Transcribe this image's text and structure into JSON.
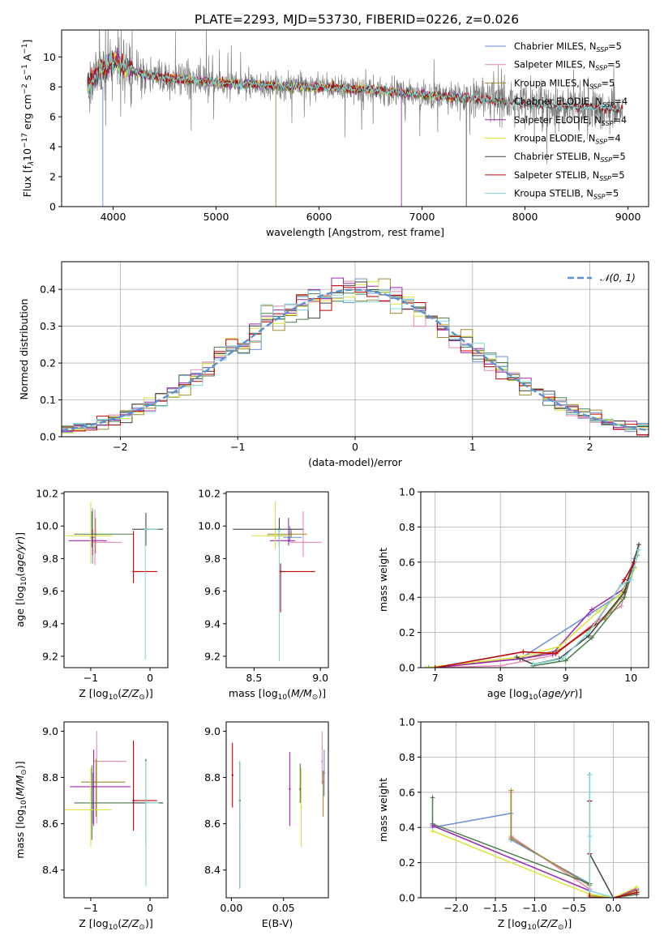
{
  "title": "PLATE=2293, MJD=53730, FIBERID=0226, z=0.026",
  "legend_labels": [
    "Chabrier MILES, N",
    "Salpeter MILES, N",
    "Kroupa MILES, N",
    "Chabrier ELODIE, N",
    "Salpeter ELODIE, N",
    "Kroupa ELODIE, N",
    "Chabrier STELIB, N",
    "Salpeter STELIB, N",
    "Kroupa STELIB, N"
  ],
  "legend_ssp": [
    "5",
    "5",
    "5",
    "4",
    "4",
    "4",
    "5",
    "5",
    "5"
  ],
  "legend_sub": "SSP",
  "colors": {
    "model": [
      "#6a8fd6",
      "#e889b0",
      "#a08a2a",
      "#4a7a4a",
      "#9c27b0",
      "#dde23a",
      "#444444",
      "#c00000",
      "#7fd8d8"
    ],
    "data_spectrum": "#808080",
    "gaussian": "#5b8fd6",
    "grid": "#b0b0b0"
  },
  "chart_data": [
    {
      "id": "spectrum",
      "type": "line",
      "xlabel": "wavelength [Angstrom, rest frame]",
      "ylabel": "Flux [f",
      "xlim": [
        3500,
        9200
      ],
      "ylim": [
        0,
        11.8
      ],
      "xticks": [
        4000,
        5000,
        6000,
        7000,
        8000,
        9000
      ],
      "yticks": [
        0,
        2,
        4,
        6,
        8,
        10
      ],
      "grid": false,
      "legend": "top-right",
      "continuum": {
        "x": [
          3750,
          3900,
          4000,
          4100,
          4300,
          4500,
          5000,
          5500,
          6000,
          6500,
          7000,
          7500,
          8000,
          8500,
          8900
        ],
        "y": [
          8.1,
          9.2,
          9.8,
          9.4,
          8.8,
          8.6,
          8.3,
          8.1,
          8.0,
          7.8,
          7.5,
          7.2,
          6.9,
          6.7,
          6.5
        ]
      },
      "data_range": [
        3750,
        8950
      ],
      "model_range": [
        3750,
        7450
      ],
      "stelib_range": [
        3750,
        8950
      ]
    },
    {
      "id": "residuals",
      "type": "histogram",
      "xlabel": "(data-model)/error",
      "ylabel": "Normed distribution",
      "xlim": [
        -2.5,
        2.5
      ],
      "ylim": [
        0,
        0.475
      ],
      "xticks": [
        -2,
        -1,
        0,
        1,
        2
      ],
      "yticks": [
        0.0,
        0.1,
        0.2,
        0.3,
        0.4
      ],
      "grid": true,
      "legend": "top-right",
      "gaussian_label": "𝒩(0, 1)",
      "bin_width": 0.1
    },
    {
      "id": "age_vs_Z",
      "type": "errorbar",
      "xlabel": "Z [log",
      "ylabel": "age  [log",
      "xlim": [
        -1.45,
        0.3
      ],
      "ylim": [
        9.13,
        10.21
      ],
      "xticks": [
        -1,
        0
      ],
      "yticks": [
        9.2,
        9.4,
        9.6,
        9.8,
        10.0,
        10.2
      ],
      "points": [
        {
          "x": -0.97,
          "y": 9.93,
          "xerr": [
            0.04,
            0.04
          ],
          "yerr": [
            0.16,
            0.18
          ]
        },
        {
          "x": -0.93,
          "y": 9.9,
          "xerr": [
            0.05,
            0.45
          ],
          "yerr": [
            0.14,
            0.2
          ]
        },
        {
          "x": -0.92,
          "y": 9.95,
          "xerr": [
            0.03,
            0.02
          ],
          "yerr": [
            0.12,
            0.1
          ]
        },
        {
          "x": -0.98,
          "y": 9.95,
          "xerr": [
            0.3,
            0.7
          ],
          "yerr": [
            0.08,
            0.14
          ]
        },
        {
          "x": -0.97,
          "y": 9.91,
          "xerr": [
            0.4,
            0.24
          ],
          "yerr": [
            0.09,
            0.07
          ]
        },
        {
          "x": -1.0,
          "y": 9.94,
          "xerr": [
            0.42,
            0.37
          ],
          "yerr": [
            0.17,
            0.21
          ]
        },
        {
          "x": -0.07,
          "y": 9.98,
          "xerr": [
            0.23,
            0.29
          ],
          "yerr": [
            0.1,
            0.1
          ]
        },
        {
          "x": -0.28,
          "y": 9.72,
          "xerr": [
            0.01,
            0.4
          ],
          "yerr": [
            0.07,
            0.25
          ]
        },
        {
          "x": -0.08,
          "y": 9.98,
          "xerr": [
            0.01,
            0.22
          ],
          "yerr": [
            0.8,
            0.01
          ]
        }
      ]
    },
    {
      "id": "age_vs_mass",
      "type": "errorbar",
      "xlabel": "mass [log",
      "ylabel": "",
      "xlim": [
        8.29,
        9.06
      ],
      "ylim": [
        9.13,
        10.21
      ],
      "xticks": [
        8.5,
        9.0
      ],
      "yticks": [
        9.2,
        9.4,
        9.6,
        9.8,
        10.0,
        10.2
      ],
      "points": [
        {
          "x": 8.77,
          "y": 9.93,
          "xerr": [
            0.05,
            0.09
          ],
          "yerr": [
            0.03,
            0.07
          ]
        },
        {
          "x": 8.87,
          "y": 9.9,
          "xerr": [
            0.1,
            0.14
          ],
          "yerr": [
            0.09,
            0.19
          ]
        },
        {
          "x": 8.78,
          "y": 9.95,
          "xerr": [
            0.18,
            0.12
          ],
          "yerr": [
            0.02,
            0.03
          ]
        },
        {
          "x": 8.69,
          "y": 9.94,
          "xerr": [
            0.09,
            0.06
          ],
          "yerr": [
            0.04,
            0.04
          ]
        },
        {
          "x": 8.76,
          "y": 9.91,
          "xerr": [
            0.14,
            0.05
          ],
          "yerr": [
            0.03,
            0.14
          ]
        },
        {
          "x": 8.66,
          "y": 9.94,
          "xerr": [
            0.18,
            0.11
          ],
          "yerr": [
            0.08,
            0.21
          ]
        },
        {
          "x": 8.69,
          "y": 9.98,
          "xerr": [
            0.35,
            0.18
          ],
          "yerr": [
            0.1,
            0.07
          ]
        },
        {
          "x": 8.7,
          "y": 9.72,
          "xerr": [
            0.01,
            0.26
          ],
          "yerr": [
            0.25,
            0.05
          ]
        },
        {
          "x": 8.69,
          "y": 9.97,
          "xerr": [
            0.01,
            0.01
          ],
          "yerr": [
            0.8,
            0.01
          ]
        }
      ]
    },
    {
      "id": "massweight_vs_age",
      "type": "line",
      "xlabel": "age  [log",
      "ylabel": "mass weight",
      "xlim": [
        6.78,
        10.27
      ],
      "ylim": [
        0,
        1.0
      ],
      "xticks": [
        7,
        8,
        9,
        10
      ],
      "yticks": [
        0.0,
        0.2,
        0.4,
        0.6,
        0.8,
        1.0
      ],
      "grid": true,
      "series": [
        {
          "x": [
            6.9,
            8.3,
            9.35,
            9.85,
            9.95,
            10.05
          ],
          "y": [
            0.0,
            0.05,
            0.3,
            0.42,
            0.5,
            0.62
          ]
        },
        {
          "x": [
            7.0,
            8.0,
            8.8,
            9.5,
            9.85,
            10.0
          ],
          "y": [
            0.0,
            0.01,
            0.07,
            0.27,
            0.35,
            0.55
          ]
        },
        {
          "x": [
            7.0,
            8.3,
            8.9,
            9.6,
            9.85,
            10.05
          ],
          "y": [
            0.0,
            0.05,
            0.1,
            0.28,
            0.4,
            0.57
          ]
        },
        {
          "x": [
            8.5,
            9.0,
            9.4,
            9.9,
            10.1
          ],
          "y": [
            0.01,
            0.04,
            0.17,
            0.4,
            0.64
          ]
        },
        {
          "x": [
            7.0,
            8.3,
            8.8,
            9.4,
            9.9,
            10.05
          ],
          "y": [
            0.0,
            0.05,
            0.08,
            0.33,
            0.45,
            0.6
          ]
        },
        {
          "x": [
            6.85,
            8.3,
            8.9,
            9.5,
            9.85,
            10.05
          ],
          "y": [
            0.0,
            0.06,
            0.12,
            0.32,
            0.42,
            0.56
          ]
        },
        {
          "x": [
            8.25,
            8.5,
            8.9,
            9.35,
            9.9,
            10.12
          ],
          "y": [
            0.06,
            0.02,
            0.05,
            0.18,
            0.43,
            0.7
          ]
        },
        {
          "x": [
            7.0,
            8.35,
            8.85,
            9.45,
            9.9,
            10.05
          ],
          "y": [
            0.0,
            0.09,
            0.08,
            0.25,
            0.5,
            0.6
          ]
        },
        {
          "x": [
            8.5,
            8.95,
            9.35,
            9.85,
            10.0,
            10.12
          ],
          "y": [
            0.02,
            0.05,
            0.2,
            0.47,
            0.5,
            0.67
          ]
        }
      ]
    },
    {
      "id": "mass_vs_Z",
      "type": "errorbar",
      "xlabel": "Z [log",
      "ylabel": "mass [log",
      "xlim": [
        -1.45,
        0.3
      ],
      "ylim": [
        8.28,
        9.04
      ],
      "xticks": [
        -1,
        0
      ],
      "yticks": [
        8.4,
        8.6,
        8.8,
        9.0
      ],
      "points": [
        {
          "x": -0.97,
          "y": 8.76,
          "xerr": [
            0.04,
            0.04
          ],
          "yerr": [
            0.16,
            0.06
          ]
        },
        {
          "x": -0.9,
          "y": 8.87,
          "xerr": [
            0.05,
            0.5
          ],
          "yerr": [
            0.27,
            0.13
          ]
        },
        {
          "x": -0.91,
          "y": 8.78,
          "xerr": [
            0.25,
            0.49
          ],
          "yerr": [
            0.15,
            0.1
          ]
        },
        {
          "x": -0.98,
          "y": 8.69,
          "xerr": [
            0.3,
            0.7
          ],
          "yerr": [
            0.16,
            0.16
          ]
        },
        {
          "x": -0.95,
          "y": 8.76,
          "xerr": [
            0.4,
            0.62
          ],
          "yerr": [
            0.17,
            0.16
          ]
        },
        {
          "x": -1.0,
          "y": 8.66,
          "xerr": [
            0.45,
            0.35
          ],
          "yerr": [
            0.16,
            0.18
          ]
        },
        {
          "x": -0.07,
          "y": 8.69,
          "xerr": [
            0.23,
            0.29
          ],
          "yerr": [
            0.18,
            0.19
          ]
        },
        {
          "x": -0.28,
          "y": 8.7,
          "xerr": [
            0.01,
            0.4
          ],
          "yerr": [
            0.13,
            0.26
          ]
        },
        {
          "x": -0.07,
          "y": 8.69,
          "xerr": [
            0.01,
            0.22
          ],
          "yerr": [
            0.36,
            0.18
          ]
        }
      ]
    },
    {
      "id": "mass_vs_ebv",
      "type": "errorbar",
      "xlabel": "E(B-V)",
      "ylabel": "",
      "xlim": [
        -0.005,
        0.093
      ],
      "ylim": [
        8.28,
        9.04
      ],
      "xticks": [
        0.0,
        0.05
      ],
      "yticks": [
        8.4,
        8.6,
        8.8,
        9.0
      ],
      "points": [
        {
          "x": 0.089,
          "y": 8.82,
          "xerr": [
            0.0,
            0.0
          ],
          "yerr": [
            0.1,
            0.1
          ]
        },
        {
          "x": 0.087,
          "y": 8.87,
          "xerr": [
            0.0,
            0.0
          ],
          "yerr": [
            0.1,
            0.13
          ]
        },
        {
          "x": 0.088,
          "y": 8.78,
          "xerr": [
            0.0,
            0.0
          ],
          "yerr": [
            0.15,
            0.05
          ]
        },
        {
          "x": 0.066,
          "y": 8.75,
          "xerr": [
            0.0,
            0.0
          ],
          "yerr": [
            0.06,
            0.11
          ]
        },
        {
          "x": 0.056,
          "y": 8.75,
          "xerr": [
            0.0,
            0.0
          ],
          "yerr": [
            0.16,
            0.16
          ]
        },
        {
          "x": 0.067,
          "y": 8.67,
          "xerr": [
            0.0,
            0.0
          ],
          "yerr": [
            0.17,
            0.17
          ]
        },
        {
          "x": 0.008,
          "y": 8.7,
          "xerr": [
            0.0,
            0.0
          ],
          "yerr": [
            0.38,
            0.17
          ]
        },
        {
          "x": 0.001,
          "y": 8.81,
          "xerr": [
            0.0,
            0.0
          ],
          "yerr": [
            0.14,
            0.14
          ]
        },
        {
          "x": 0.008,
          "y": 8.6,
          "xerr": [
            0.0,
            0.0
          ],
          "yerr": [
            0.28,
            0.27
          ]
        }
      ]
    },
    {
      "id": "massweight_vs_Z",
      "type": "line",
      "xlabel": "Z [log",
      "ylabel": "mass weight",
      "xlim": [
        -2.45,
        0.45
      ],
      "ylim": [
        0,
        1.0
      ],
      "xticks": [
        -2.0,
        -1.5,
        -1.0,
        -0.5,
        0.0
      ],
      "yticks": [
        0.0,
        0.2,
        0.4,
        0.6,
        0.8,
        1.0
      ],
      "grid": true,
      "series": [
        {
          "x": [
            -2.3,
            -1.3,
            -1.3,
            -0.3,
            -0.3,
            0.0,
            0.3
          ],
          "y": [
            0.4,
            0.48,
            0.33,
            0.08,
            0.0,
            0.0,
            0.02
          ]
        },
        {
          "x": [
            -1.3,
            -1.3,
            -0.3,
            -0.3,
            0.0,
            0.3
          ],
          "y": [
            0.6,
            0.35,
            0.05,
            0.0,
            0.0,
            0.03
          ]
        },
        {
          "x": [
            -1.3,
            -1.3,
            -0.3,
            -0.3,
            0.0,
            0.3
          ],
          "y": [
            0.61,
            0.34,
            0.07,
            0.01,
            0.0,
            0.04
          ]
        },
        {
          "x": [
            -2.3,
            -2.3,
            -0.3,
            -0.3,
            0.0,
            0.3
          ],
          "y": [
            0.57,
            0.42,
            0.08,
            0.02,
            0.0,
            0.02
          ]
        },
        {
          "x": [
            -2.3,
            -0.3,
            -0.3,
            0.0,
            0.3
          ],
          "y": [
            0.41,
            0.04,
            0.0,
            0.0,
            0.05
          ]
        },
        {
          "x": [
            -2.3,
            -0.3,
            0.0,
            0.3
          ],
          "y": [
            0.38,
            0.02,
            0.0,
            0.06
          ]
        },
        {
          "x": [
            -0.3,
            -0.3,
            -0.3,
            0.0
          ],
          "y": [
            0.7,
            0.55,
            0.25,
            0.0
          ]
        },
        {
          "x": [
            -0.3,
            -0.3,
            -0.3,
            0.0,
            0.3
          ],
          "y": [
            0.55,
            0.25,
            0.0,
            0.0,
            0.03
          ]
        },
        {
          "x": [
            -0.3,
            -0.3,
            -0.3,
            0.0
          ],
          "y": [
            0.7,
            0.35,
            0.04,
            0.0
          ]
        }
      ]
    }
  ]
}
